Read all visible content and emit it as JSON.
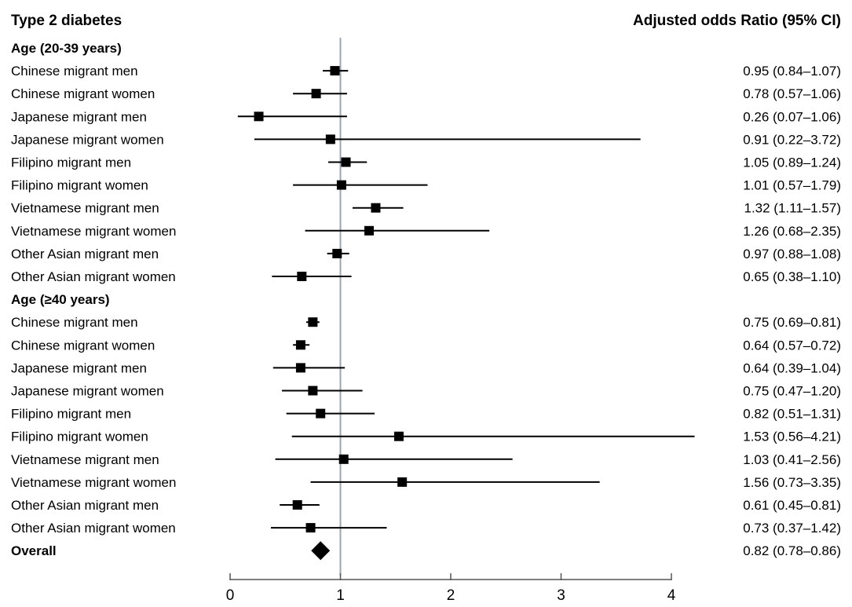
{
  "chart_data": {
    "type": "forest",
    "title": "Type 2 diabetes",
    "value_header": "Adjusted odds Ratio (95% CI)",
    "x_range": [
      0,
      4
    ],
    "x_ticks": [
      0,
      1,
      2,
      3,
      4
    ],
    "reference_line": 1,
    "rows": [
      {
        "kind": "group",
        "label": "Age (20-39 years)"
      },
      {
        "kind": "item",
        "label": "Chinese migrant men",
        "or": 0.95,
        "lo": 0.84,
        "hi": 1.07,
        "text": "0.95 (0.84–1.07)"
      },
      {
        "kind": "item",
        "label": "Chinese migrant women",
        "or": 0.78,
        "lo": 0.57,
        "hi": 1.06,
        "text": "0.78 (0.57–1.06)"
      },
      {
        "kind": "item",
        "label": "Japanese migrant men",
        "or": 0.26,
        "lo": 0.07,
        "hi": 1.06,
        "text": "0.26 (0.07–1.06)"
      },
      {
        "kind": "item",
        "label": "Japanese migrant women",
        "or": 0.91,
        "lo": 0.22,
        "hi": 3.72,
        "text": "0.91 (0.22–3.72)"
      },
      {
        "kind": "item",
        "label": "Filipino migrant men",
        "or": 1.05,
        "lo": 0.89,
        "hi": 1.24,
        "text": "1.05 (0.89–1.24)"
      },
      {
        "kind": "item",
        "label": "Filipino migrant women",
        "or": 1.01,
        "lo": 0.57,
        "hi": 1.79,
        "text": "1.01 (0.57–1.79)"
      },
      {
        "kind": "item",
        "label": "Vietnamese migrant men",
        "or": 1.32,
        "lo": 1.11,
        "hi": 1.57,
        "text": "1.32 (1.11–1.57)"
      },
      {
        "kind": "item",
        "label": "Vietnamese migrant women",
        "or": 1.26,
        "lo": 0.68,
        "hi": 2.35,
        "text": "1.26 (0.68–2.35)"
      },
      {
        "kind": "item",
        "label": "Other Asian migrant men",
        "or": 0.97,
        "lo": 0.88,
        "hi": 1.08,
        "text": "0.97 (0.88–1.08)"
      },
      {
        "kind": "item",
        "label": "Other Asian migrant women",
        "or": 0.65,
        "lo": 0.38,
        "hi": 1.1,
        "text": "0.65 (0.38–1.10)"
      },
      {
        "kind": "group",
        "label": "Age (≥40 years)"
      },
      {
        "kind": "item",
        "label": "Chinese migrant men",
        "or": 0.75,
        "lo": 0.69,
        "hi": 0.81,
        "text": "0.75 (0.69–0.81)"
      },
      {
        "kind": "item",
        "label": "Chinese migrant women",
        "or": 0.64,
        "lo": 0.57,
        "hi": 0.72,
        "text": "0.64 (0.57–0.72)"
      },
      {
        "kind": "item",
        "label": "Japanese migrant men",
        "or": 0.64,
        "lo": 0.39,
        "hi": 1.04,
        "text": "0.64 (0.39–1.04)"
      },
      {
        "kind": "item",
        "label": "Japanese migrant women",
        "or": 0.75,
        "lo": 0.47,
        "hi": 1.2,
        "text": "0.75 (0.47–1.20)"
      },
      {
        "kind": "item",
        "label": "Filipino migrant men",
        "or": 0.82,
        "lo": 0.51,
        "hi": 1.31,
        "text": "0.82 (0.51–1.31)"
      },
      {
        "kind": "item",
        "label": "Filipino migrant women",
        "or": 1.53,
        "lo": 0.56,
        "hi": 4.21,
        "text": "1.53 (0.56–4.21)"
      },
      {
        "kind": "item",
        "label": "Vietnamese migrant men",
        "or": 1.03,
        "lo": 0.41,
        "hi": 2.56,
        "text": "1.03 (0.41–2.56)"
      },
      {
        "kind": "item",
        "label": "Vietnamese migrant women",
        "or": 1.56,
        "lo": 0.73,
        "hi": 3.35,
        "text": "1.56 (0.73–3.35)"
      },
      {
        "kind": "item",
        "label": "Other Asian migrant men",
        "or": 0.61,
        "lo": 0.45,
        "hi": 0.81,
        "text": "0.61 (0.45–0.81)"
      },
      {
        "kind": "item",
        "label": "Other Asian migrant women",
        "or": 0.73,
        "lo": 0.37,
        "hi": 1.42,
        "text": "0.73 (0.37–1.42)"
      },
      {
        "kind": "overall",
        "label": "Overall",
        "or": 0.82,
        "lo": 0.78,
        "hi": 0.86,
        "text": "0.82 (0.78–0.86)"
      }
    ],
    "colors": {
      "marker": "#000000",
      "ci_line": "#000000",
      "reference_line": "#9aa6b2",
      "axis": "#555555"
    }
  }
}
